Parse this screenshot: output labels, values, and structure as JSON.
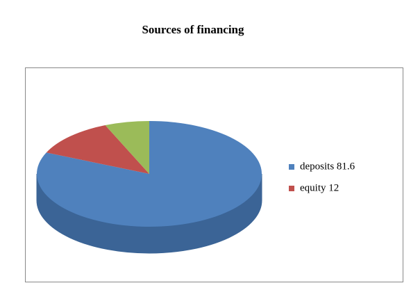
{
  "chart_data": {
    "type": "pie3d",
    "title": "Sources of financing",
    "categories": [
      "deposits 81.6",
      "equity 12",
      null
    ],
    "values": [
      81.6,
      12,
      6.4
    ],
    "colors": [
      "#4f81bd",
      "#c0504d",
      "#9bbb59"
    ],
    "side_colors": [
      "#3b6496",
      "#96403d",
      "#7a9446"
    ],
    "legend": "right"
  }
}
